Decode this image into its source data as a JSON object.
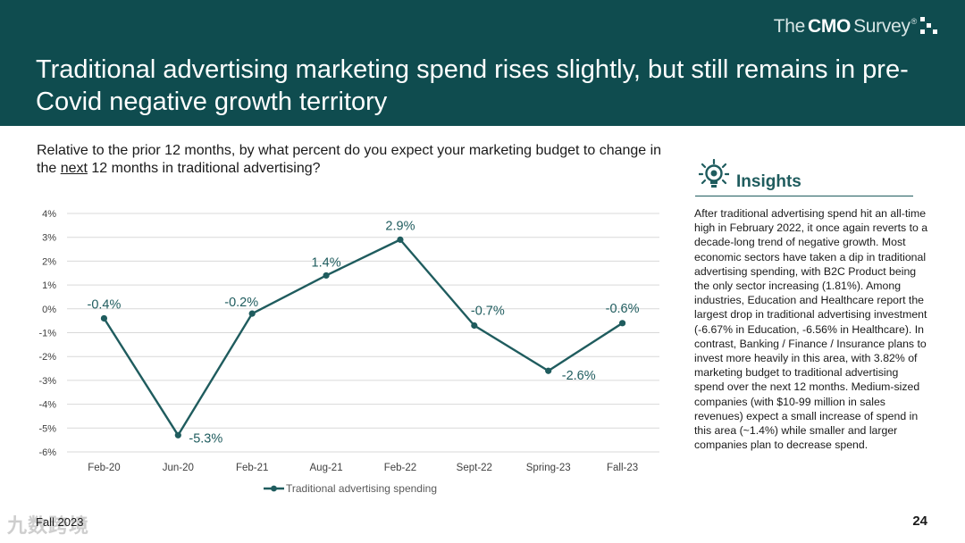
{
  "header": {
    "logo_pre": "The",
    "logo_bold": "CMO",
    "logo_post": "Survey",
    "logo_tm": "®",
    "title": "Traditional advertising marketing spend rises slightly, but still remains in pre-Covid negative growth territory"
  },
  "question": {
    "part1": "Relative to the prior 12 months, by what percent do you expect your marketing budget to change in the ",
    "underlined": "next",
    "part2": " 12 months in traditional advertising?"
  },
  "chart_data": {
    "type": "line",
    "categories": [
      "Feb-20",
      "Jun-20",
      "Feb-21",
      "Aug-21",
      "Feb-22",
      "Sept-22",
      "Spring-23",
      "Fall-23"
    ],
    "series": [
      {
        "name": "Traditional advertising spending",
        "values": [
          -0.4,
          -5.3,
          -0.2,
          1.4,
          2.9,
          -0.7,
          -2.6,
          -0.6
        ],
        "labels": [
          "-0.4%",
          "-5.3%",
          "-0.2%",
          "1.4%",
          "2.9%",
          "-0.7%",
          "-2.6%",
          "-0.6%"
        ]
      }
    ],
    "ylim": [
      -6,
      4
    ],
    "yticks": [
      4,
      3,
      2,
      1,
      0,
      -1,
      -2,
      -3,
      -4,
      -5,
      -6
    ],
    "ytick_labels": [
      "4%",
      "3%",
      "2%",
      "1%",
      "0%",
      "-1%",
      "-2%",
      "-3%",
      "-4%",
      "-5%",
      "-6%"
    ],
    "grid": true,
    "legend": "bottom",
    "xlabel": "",
    "ylabel": "",
    "title": ""
  },
  "insights": {
    "title": "Insights",
    "body": "After traditional advertising spend hit an all-time high in February 2022, it once again reverts to a decade-long trend of negative growth. Most economic sectors have taken a dip in traditional advertising spending, with B2C Product being the only sector increasing (1.81%). Among industries, Education and Healthcare report the largest drop in traditional advertising investment (-6.67% in Education, -6.56% in Healthcare). In contrast, Banking / Finance / Insurance plans to invest more heavily in this area, with 3.82% of marketing budget to traditional advertising spend over the next 12 months. Medium-sized companies (with $10-99 million in sales revenues) expect a small increase of spend in this area (~1.4%) while smaller and larger companies plan to decrease spend."
  },
  "footer": {
    "left": "Fall 2023",
    "page": "24",
    "watermark": "九数跨境"
  },
  "colors": {
    "header_bg": "#0f4c4f",
    "line": "#1f5c5e",
    "grid": "#d9d9d9"
  }
}
